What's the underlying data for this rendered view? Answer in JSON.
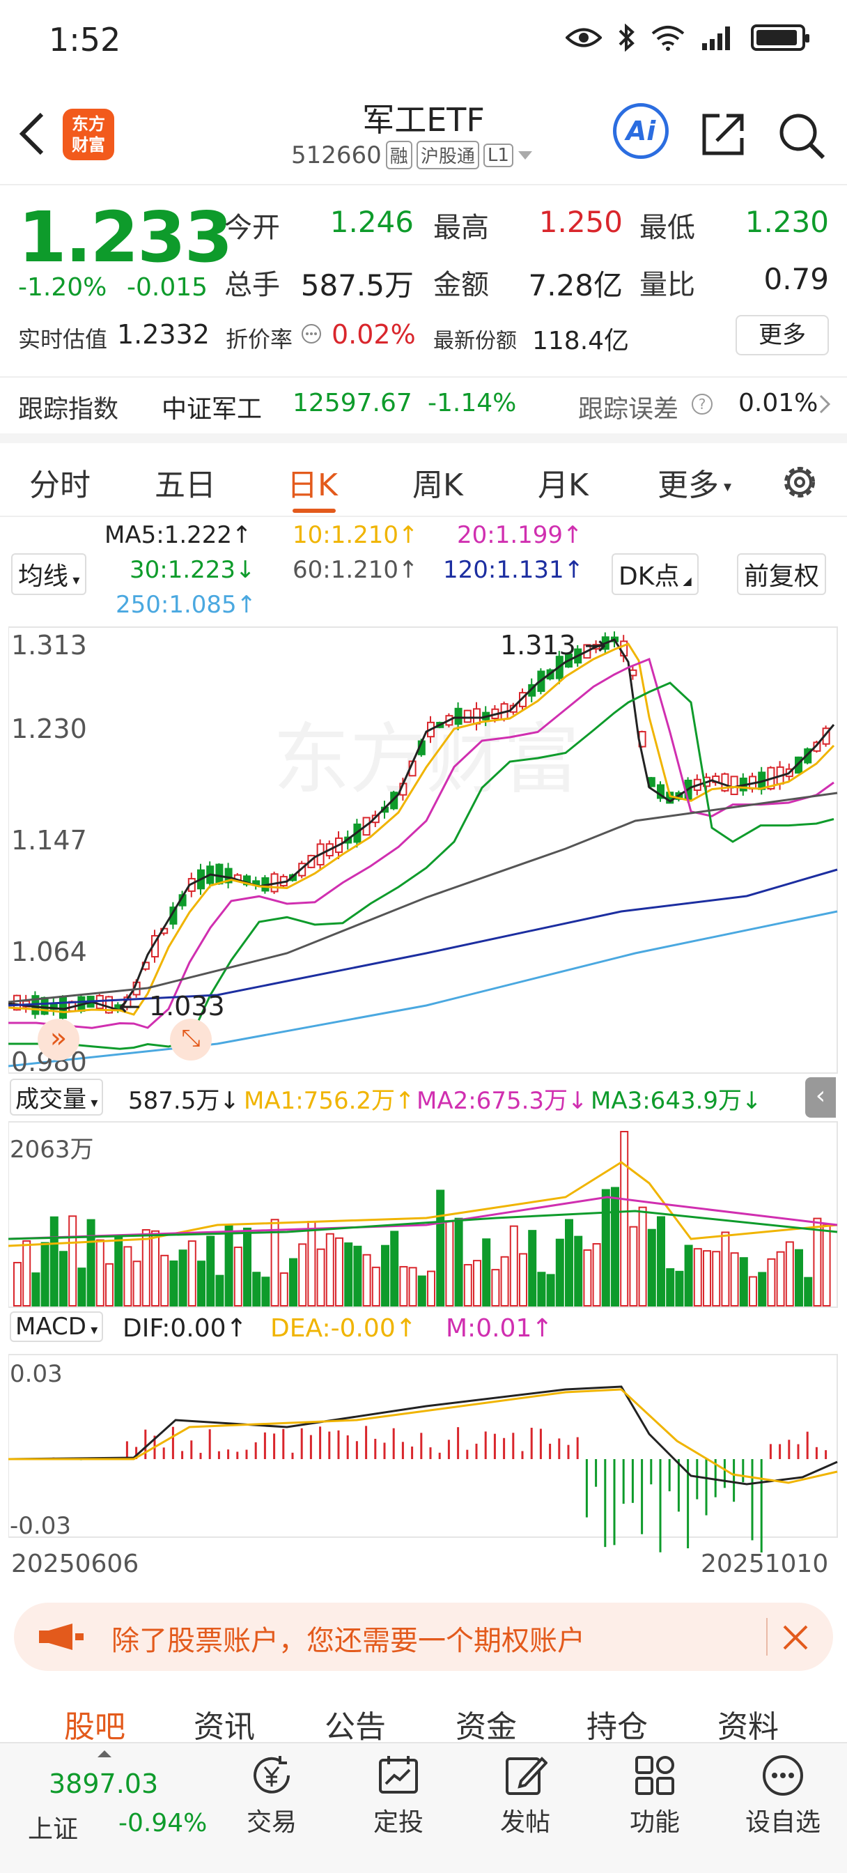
{
  "status_bar": {
    "time": "1:52"
  },
  "header": {
    "logo_text": "东方财富",
    "title": "军工ETF",
    "code": "512660",
    "tags": [
      "融",
      "沪股通",
      "L1"
    ],
    "ai_label": "Ai"
  },
  "quote": {
    "price": "1.233",
    "change_pct": "-1.20%",
    "change_amt": "-0.015",
    "open_label": "今开",
    "open": "1.246",
    "high_label": "最高",
    "high": "1.250",
    "low_label": "最低",
    "low": "1.230",
    "volume_label": "总手",
    "volume": "587.5万",
    "amount_label": "金额",
    "amount": "7.28亿",
    "ratio_label": "量比",
    "ratio": "0.79",
    "iopv_label": "实时估值",
    "iopv": "1.2332",
    "premium_label": "折价率",
    "premium": "0.02%",
    "shares_label": "最新份额",
    "shares": "118.4亿",
    "more_label": "更多"
  },
  "tracking": {
    "label": "跟踪指数",
    "index_name": "中证军工",
    "index_value": "12597.67",
    "index_change": "-1.14%",
    "error_label": "跟踪误差",
    "error_value": "0.01%"
  },
  "tabs": [
    "分时",
    "五日",
    "日K",
    "周K",
    "月K",
    "更多"
  ],
  "active_tab": "日K",
  "ma_legend": {
    "ma5": "MA5:1.222↑",
    "ma10": "10:1.210↑",
    "ma20": "20:1.199↑",
    "ma30": "30:1.223↓",
    "ma60": "60:1.210↑",
    "ma120": "120:1.131↑",
    "ma250": "250:1.085↑",
    "ma_btn": "均线",
    "dk_btn": "DK点",
    "adj_btn": "前复权"
  },
  "kline": {
    "y_labels": [
      "1.313",
      "1.230",
      "1.147",
      "1.064",
      "0.980"
    ],
    "max_label": "1.313",
    "min_label": "1.033"
  },
  "volume": {
    "label": "成交量",
    "value": "587.5万↓",
    "ma1": "MA1:756.2万↑",
    "ma2": "MA2:675.3万↓",
    "ma3": "MA3:643.9万↓",
    "y_max": "2063万"
  },
  "macd": {
    "label": "MACD",
    "dif": "DIF:0.00↑",
    "dea": "DEA:-0.00↑",
    "m": "M:0.01↑",
    "y_top": "0.03",
    "y_bottom": "-0.03"
  },
  "dates": {
    "start": "20250606",
    "end": "20251010"
  },
  "colors": {
    "up": "#d9262c",
    "down": "#0e9b2b",
    "accent": "#e35a1c"
  },
  "banner": {
    "text": "除了股票账户，您还需要一个期权账户"
  },
  "bottom_tabs": [
    "股吧",
    "资讯",
    "公告",
    "资金",
    "持仓",
    "资料"
  ],
  "market": {
    "name": "上证",
    "value": "3897.03",
    "change": "-0.94%"
  },
  "nav": [
    "交易",
    "定投",
    "发帖",
    "功能",
    "设自选"
  ]
}
